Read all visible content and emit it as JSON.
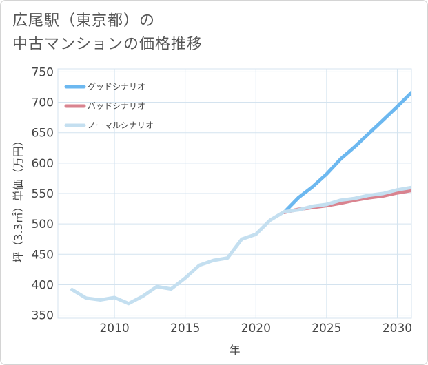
{
  "title": {
    "line1": "広尾駅（東京都）の",
    "line2": "中古マンションの価格推移"
  },
  "colors": {
    "good": "#6cb8f0",
    "bad": "#d9838f",
    "normal": "#c4dff0",
    "grid": "#d4e3ef"
  },
  "chart_data": {
    "type": "line",
    "title": "広尾駅（東京都）の中古マンションの価格推移",
    "xlabel": "年",
    "ylabel": "坪（3.3㎡）単価（万円）",
    "xlim": [
      2006,
      2031
    ],
    "ylim": [
      345,
      755
    ],
    "xticks": [
      2010,
      2015,
      2020,
      2025,
      2030
    ],
    "yticks": [
      350,
      400,
      450,
      500,
      550,
      600,
      650,
      700,
      750
    ],
    "legend_position": "top-left",
    "series": [
      {
        "name": "グッドシナリオ",
        "key": "good",
        "x": [
          2022,
          2023,
          2024,
          2025,
          2026,
          2027,
          2028,
          2029,
          2030,
          2031
        ],
        "y": [
          519,
          543,
          561,
          582,
          607,
          627,
          649,
          671,
          693,
          716
        ]
      },
      {
        "name": "バッドシナリオ",
        "key": "bad",
        "x": [
          2022,
          2023,
          2024,
          2025,
          2026,
          2027,
          2028,
          2029,
          2030,
          2031
        ],
        "y": [
          519,
          524,
          527,
          530,
          534,
          539,
          543,
          546,
          551,
          555
        ]
      },
      {
        "name": "ノーマルシナリオ",
        "key": "normal",
        "x": [
          2007,
          2008,
          2009,
          2010,
          2011,
          2012,
          2013,
          2014,
          2015,
          2016,
          2017,
          2018,
          2019,
          2020,
          2021,
          2022,
          2023,
          2024,
          2025,
          2026,
          2027,
          2028,
          2029,
          2030,
          2031
        ],
        "y": [
          392,
          378,
          375,
          379,
          369,
          381,
          397,
          393,
          411,
          432,
          440,
          444,
          475,
          483,
          506,
          520,
          523,
          529,
          532,
          539,
          542,
          547,
          550,
          556,
          560
        ]
      }
    ]
  }
}
